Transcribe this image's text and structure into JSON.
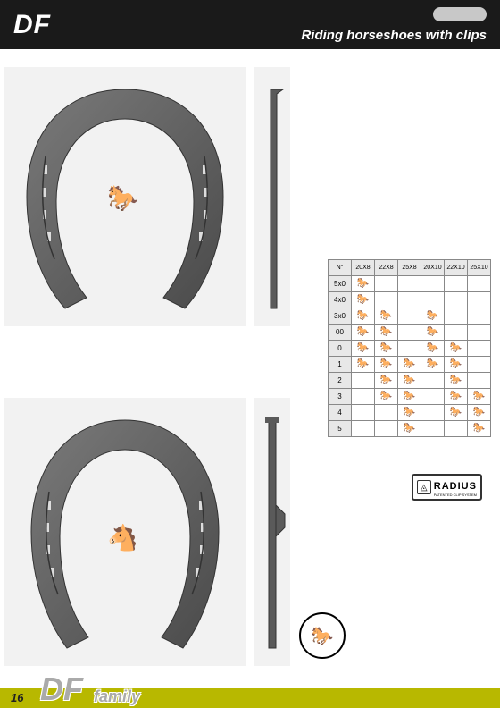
{
  "header": {
    "title": "DF",
    "subtitle": "Riding horseshoes with clips"
  },
  "table": {
    "corner": "N°",
    "columns": [
      "20X8",
      "22X8",
      "25X8",
      "20X10",
      "22X10",
      "25X10"
    ],
    "rows": [
      {
        "label": "5x0",
        "cells": [
          1,
          0,
          0,
          0,
          0,
          0
        ]
      },
      {
        "label": "4x0",
        "cells": [
          1,
          0,
          0,
          0,
          0,
          0
        ]
      },
      {
        "label": "3x0",
        "cells": [
          1,
          1,
          0,
          1,
          0,
          0
        ]
      },
      {
        "label": "00",
        "cells": [
          1,
          1,
          0,
          1,
          0,
          0
        ]
      },
      {
        "label": "0",
        "cells": [
          1,
          1,
          0,
          1,
          1,
          0
        ]
      },
      {
        "label": "1",
        "cells": [
          1,
          1,
          1,
          1,
          1,
          0
        ]
      },
      {
        "label": "2",
        "cells": [
          0,
          1,
          1,
          0,
          1,
          0
        ]
      },
      {
        "label": "3",
        "cells": [
          0,
          1,
          1,
          0,
          1,
          1
        ]
      },
      {
        "label": "4",
        "cells": [
          0,
          0,
          1,
          0,
          1,
          1
        ]
      },
      {
        "label": "5",
        "cells": [
          0,
          0,
          1,
          0,
          0,
          1
        ]
      }
    ],
    "mark_glyph": "🐎"
  },
  "radius": {
    "label": "RADIUS",
    "sub": "PATENTED CLIP SYSTEM",
    "icon": "◬"
  },
  "approved": {
    "glyph": "🐎"
  },
  "footer": {
    "page": "16",
    "title": "DF",
    "sub": "family"
  },
  "colors": {
    "header_bg": "#1a1a1a",
    "accent": "#b8b800",
    "shoe_fill": "#5e5e5e",
    "shoe_bg": "#f2f2f2"
  }
}
